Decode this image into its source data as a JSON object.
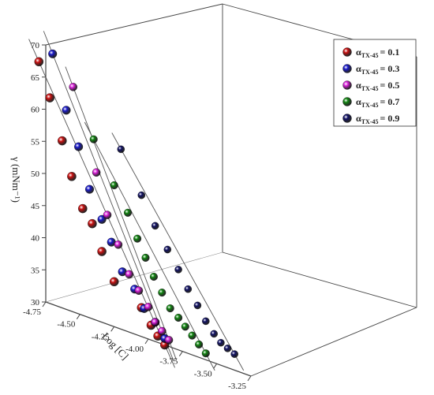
{
  "chart_data": {
    "type": "scatter",
    "projection": "3d",
    "title": "",
    "ylabel": "γ (mNm⁻¹)",
    "xlabel": "Log [C]",
    "ylim": [
      30,
      70
    ],
    "xlim": [
      -4.75,
      -3.25
    ],
    "y_ticks": [
      "30",
      "35",
      "40",
      "45",
      "50",
      "55",
      "60",
      "65",
      "70"
    ],
    "x_ticks": [
      "-4.75",
      "-4.50",
      "-4.25",
      "-4.00",
      "-3.75",
      "-3.50",
      "-3.25"
    ],
    "legend_position": "top-right",
    "legend_prefix": "α",
    "legend_sub": "TX-45",
    "series": [
      {
        "name": "= 0.1",
        "color": "#cc1111",
        "x": [
          -4.8,
          -4.72,
          -4.63,
          -4.56,
          -4.48,
          -4.41,
          -4.34,
          -4.25,
          -4.05,
          -3.98,
          -3.93,
          -3.88
        ],
        "y": [
          67.0,
          62.0,
          56.0,
          51.0,
          46.6,
          44.8,
          41.0,
          37.0,
          34.5,
          32.3,
          31.0,
          30.0
        ]
      },
      {
        "name": "= 0.3",
        "color": "#1a1acc",
        "x": [
          -4.7,
          -4.6,
          -4.51,
          -4.43,
          -4.34,
          -4.27,
          -4.19,
          -4.1,
          -4.03,
          -3.95,
          -3.88
        ],
        "y": [
          69.0,
          61.0,
          56.0,
          50.0,
          46.0,
          43.0,
          39.0,
          37.0,
          34.5,
          33.0,
          31.0
        ]
      },
      {
        "name": "= 0.5",
        "color": "#dd22dd",
        "x": [
          -4.55,
          -4.38,
          -4.3,
          -4.22,
          -4.14,
          -4.07,
          -4.0,
          -3.95,
          -3.9,
          -3.85
        ],
        "y": [
          65.0,
          53.0,
          47.0,
          43.0,
          39.0,
          37.0,
          35.0,
          33.0,
          32.0,
          31.0
        ]
      },
      {
        "name": "= 0.7",
        "color": "#118811",
        "x": [
          -4.4,
          -4.25,
          -4.15,
          -4.08,
          -4.02,
          -3.96,
          -3.9,
          -3.84,
          -3.78,
          -3.73,
          -3.68,
          -3.63,
          -3.58
        ],
        "y": [
          58.0,
          52.0,
          48.5,
          45.0,
          42.5,
          40.0,
          38.0,
          36.0,
          35.0,
          34.0,
          33.0,
          32.0,
          31.0
        ]
      },
      {
        "name": "= 0.9",
        "color": "#111166",
        "x": [
          -4.2,
          -4.05,
          -3.95,
          -3.86,
          -3.78,
          -3.71,
          -3.64,
          -3.58,
          -3.52,
          -3.47,
          -3.42,
          -3.37
        ],
        "y": [
          58.0,
          52.0,
          48.0,
          45.0,
          42.5,
          40.0,
          38.0,
          36.0,
          34.5,
          33.5,
          33.0,
          32.5
        ]
      }
    ]
  }
}
